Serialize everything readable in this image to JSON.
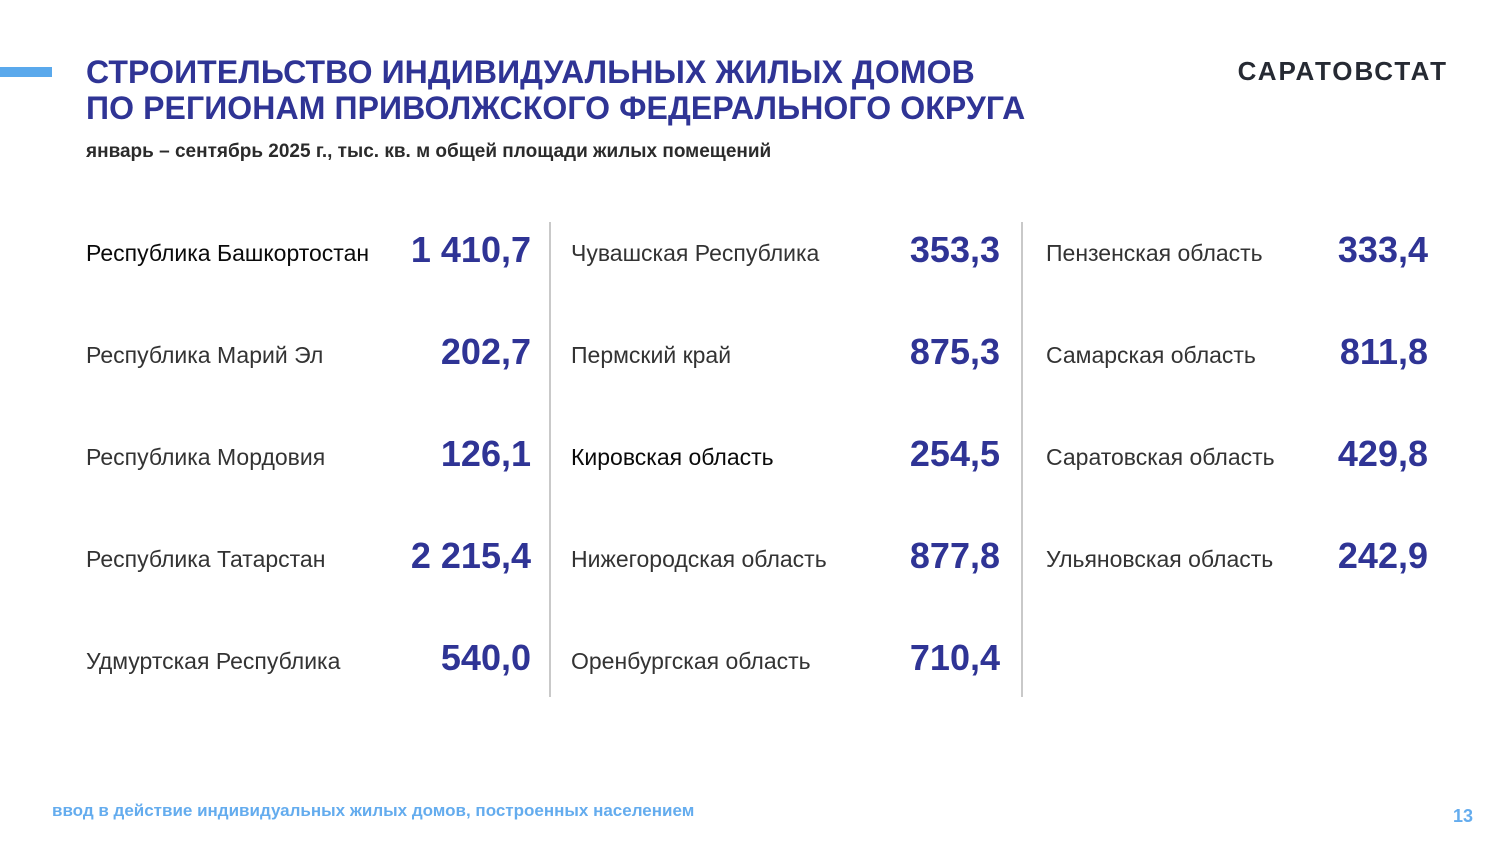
{
  "header": {
    "title_line1": "СТРОИТЕЛЬСТВО ИНДИВИДУАЛЬНЫХ ЖИЛЫХ ДОМОВ",
    "title_line2": "ПО РЕГИОНАМ ПРИВОЛЖСКОГО ФЕДЕРАЛЬНОГО ОКРУГА",
    "brand": "САРАТОВСТАТ",
    "subtitle": "январь – сентябрь 2025 г., тыс. кв. м общей площади жилых помещений"
  },
  "columns": [
    [
      {
        "region": "Республика Башкортостан",
        "value": "1 410,7"
      },
      {
        "region": "Республика Марий Эл",
        "value": "202,7"
      },
      {
        "region": "Республика Мордовия",
        "value": "126,1"
      },
      {
        "region": "Республика Татарстан",
        "value": "2 215,4"
      },
      {
        "region": "Удмуртская Республика",
        "value": "540,0"
      }
    ],
    [
      {
        "region": "Чувашская Республика",
        "value": "353,3"
      },
      {
        "region": "Пермский край",
        "value": "875,3"
      },
      {
        "region": "Кировская область",
        "value": "254,5"
      },
      {
        "region": "Нижегородская область",
        "value": "877,8"
      },
      {
        "region": "Оренбургская область",
        "value": "710,4"
      }
    ],
    [
      {
        "region": "Пензенская область",
        "value": "333,4"
      },
      {
        "region": "Самарская область",
        "value": "811,8"
      },
      {
        "region": "Саратовская область",
        "value": "429,8"
      },
      {
        "region": "Ульяновская область",
        "value": "242,9"
      }
    ]
  ],
  "footer": {
    "footnote": "ввод в действие индивидуальных жилых домов, построенных населением",
    "page_number": "13"
  },
  "colors": {
    "accent": "#2f3495",
    "light_accent": "#5aa9ec"
  }
}
